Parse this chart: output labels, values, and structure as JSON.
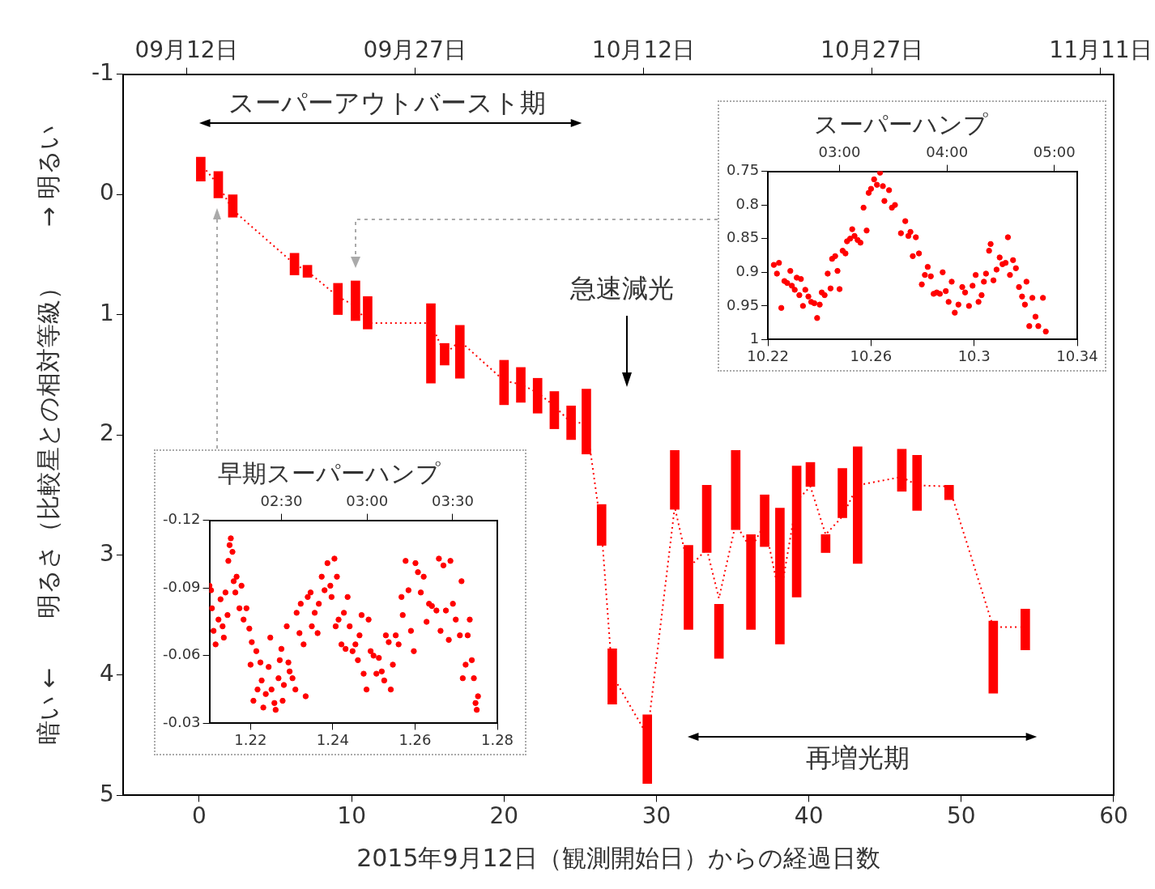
{
  "chart_data": [
    {
      "type": "bar",
      "xlabel": "2015年9月12日（観測開始日）からの経過日数",
      "ylabel": "暗い ←　　明るさ（比較星との相対等級）　　→ 明るい",
      "x": [
        0.1,
        1.25,
        2.2,
        6.25,
        7.1,
        9.1,
        10.25,
        11.05,
        15.2,
        16.1,
        17.1,
        20.0,
        21.1,
        22.2,
        23.3,
        24.4,
        25.4,
        26.4,
        27.1,
        29.4,
        31.2,
        32.1,
        33.3,
        34.1,
        35.2,
        36.2,
        37.1,
        38.1,
        39.2,
        40.1,
        41.1,
        42.2,
        43.2,
        46.1,
        47.1,
        49.2,
        52.1,
        54.2
      ],
      "series": [
        {
          "color": "#ff0000",
          "base": [
            -0.31,
            -0.19,
            0.0,
            0.49,
            0.59,
            0.74,
            0.72,
            0.85,
            0.91,
            1.24,
            1.09,
            1.38,
            1.44,
            1.53,
            1.64,
            1.76,
            1.62,
            2.58,
            3.78,
            4.33,
            2.13,
            2.92,
            2.42,
            3.41,
            2.13,
            2.83,
            2.5,
            2.61,
            2.26,
            2.23,
            2.83,
            2.28,
            2.1,
            2.12,
            2.17,
            2.42,
            3.55,
            3.45
          ],
          "values": [
            0.2,
            0.22,
            0.19,
            0.18,
            0.1,
            0.26,
            0.33,
            0.27,
            0.66,
            0.18,
            0.44,
            0.37,
            0.29,
            0.29,
            0.31,
            0.28,
            0.54,
            0.34,
            0.46,
            0.57,
            0.49,
            0.7,
            0.56,
            0.45,
            0.66,
            0.79,
            0.43,
            1.13,
            1.09,
            0.2,
            0.15,
            0.41,
            0.97,
            0.35,
            0.46,
            0.12,
            0.6,
            0.34
          ]
        },
        {
          "type": "line",
          "color": "#ff0000",
          "line_style": "dotted",
          "marker": "none",
          "x": [
            0.45,
            1.25,
            2.2,
            6.25,
            7.1,
            9.1,
            10.25,
            11.05,
            15.2,
            16.1,
            17.1,
            20.0,
            21.1,
            22.2,
            23.3,
            24.4,
            25.4,
            26.4,
            27.1,
            29.4,
            31.2,
            32.1,
            33.3,
            34.1,
            35.2,
            36.2,
            37.1,
            38.1,
            39.2,
            40.1,
            41.1,
            42.2,
            43.2,
            46.1,
            47.1,
            49.2,
            52.1,
            53.85
          ],
          "values": [
            -0.2,
            -0.08,
            0.13,
            0.58,
            0.64,
            0.85,
            0.93,
            1.07,
            1.07,
            1.33,
            1.22,
            1.55,
            1.58,
            1.65,
            1.76,
            1.9,
            1.9,
            2.8,
            4.0,
            4.5,
            2.6,
            3.11,
            2.95,
            3.36,
            2.74,
            2.95,
            2.74,
            3.36,
            2.55,
            2.43,
            2.83,
            2.68,
            2.42,
            2.35,
            2.42,
            2.43,
            3.6,
            3.6
          ]
        }
      ],
      "xlim": [
        -5,
        60
      ],
      "xticks": [
        0,
        10,
        20,
        30,
        40,
        50,
        60
      ],
      "ylim": [
        5,
        -1
      ],
      "yticks": [
        -1,
        0,
        1,
        2,
        3,
        4,
        5
      ],
      "x2lim": [
        "2015-09-07T20:24",
        "2015-11-11T20:24"
      ],
      "x2ticks": [
        {
          "value": "2015-09-12",
          "label": "09月12日"
        },
        {
          "value": "2015-09-27",
          "label": "09月27日"
        },
        {
          "value": "2015-10-12",
          "label": "10月12日"
        },
        {
          "value": "2015-10-27",
          "label": "10月27日"
        },
        {
          "value": "2015-11-11",
          "label": "11月11日"
        }
      ],
      "annotations": [
        "スーパーアウトバースト期",
        "急速減光",
        "再増光期"
      ],
      "grid": false,
      "legend": false
    },
    {
      "type": "scatter",
      "title": "早期スーパーハンプ",
      "marker": "circle",
      "series": [
        {
          "color": "#ff0000",
          "x": [
            1.21,
            1.2104,
            1.2106,
            1.211,
            1.2115,
            1.2122,
            1.2127,
            1.2132,
            1.2135,
            1.2139,
            1.2144,
            1.2146,
            1.2149,
            1.2152,
            1.2156,
            1.2159,
            1.2163,
            1.2166,
            1.2173,
            1.2178,
            1.2183,
            1.219,
            1.2197,
            1.22,
            1.2203,
            1.2207,
            1.2214,
            1.2217,
            1.2224,
            1.2227,
            1.2231,
            1.2237,
            1.2244,
            1.2248,
            1.2251,
            1.2258,
            1.2261,
            1.2268,
            1.2271,
            1.2275,
            1.2278,
            1.2281,
            1.2288,
            1.2292,
            1.2295,
            1.2302,
            1.2309,
            1.2312,
            1.2319,
            1.2322,
            1.2329,
            1.2334,
            1.2339,
            1.2346,
            1.2349,
            1.2356,
            1.2363,
            1.2366,
            1.2373,
            1.238,
            1.2387,
            1.2394,
            1.2397,
            1.2404,
            1.2407,
            1.241,
            1.2414,
            1.2421,
            1.2427,
            1.2431,
            1.2436,
            1.2441,
            1.2448,
            1.2455,
            1.2461,
            1.2465,
            1.247,
            1.2475,
            1.2482,
            1.2487,
            1.2492,
            1.2499,
            1.2506,
            1.2512,
            1.2519,
            1.2525,
            1.2529,
            1.2536,
            1.2541,
            1.2546,
            1.2553,
            1.256,
            1.2567,
            1.257,
            1.2577,
            1.2584,
            1.259,
            1.2597,
            1.2601,
            1.2607,
            1.2614,
            1.2621,
            1.2628,
            1.2634,
            1.2641,
            1.2652,
            1.2658,
            1.2662,
            1.2669,
            1.2675,
            1.2682,
            1.2686,
            1.2692,
            1.2699,
            1.2709,
            1.2713,
            1.2716,
            1.2723,
            1.2728,
            1.2733,
            1.2738,
            1.2743,
            1.2747,
            1.275,
            1.2753
          ],
          "values": [
            -0.091,
            -0.089,
            -0.081,
            -0.071,
            -0.065,
            -0.076,
            -0.085,
            -0.073,
            -0.068,
            -0.088,
            -0.078,
            -0.102,
            -0.109,
            -0.112,
            -0.106,
            -0.093,
            -0.088,
            -0.095,
            -0.081,
            -0.091,
            -0.076,
            -0.081,
            -0.072,
            -0.056,
            -0.066,
            -0.04,
            -0.062,
            -0.045,
            -0.057,
            -0.049,
            -0.037,
            -0.043,
            -0.055,
            -0.068,
            -0.045,
            -0.039,
            -0.036,
            -0.05,
            -0.058,
            -0.063,
            -0.04,
            -0.047,
            -0.073,
            -0.057,
            -0.053,
            -0.05,
            -0.045,
            -0.079,
            -0.07,
            -0.083,
            -0.065,
            -0.042,
            -0.086,
            -0.088,
            -0.073,
            -0.079,
            -0.07,
            -0.083,
            -0.095,
            -0.089,
            -0.101,
            -0.091,
            -0.086,
            -0.103,
            -0.073,
            -0.095,
            -0.076,
            -0.065,
            -0.079,
            -0.063,
            -0.086,
            -0.073,
            -0.062,
            -0.065,
            -0.058,
            -0.069,
            -0.078,
            -0.052,
            -0.045,
            -0.076,
            -0.062,
            -0.06,
            -0.052,
            -0.059,
            -0.053,
            -0.049,
            -0.069,
            -0.066,
            -0.045,
            -0.056,
            -0.069,
            -0.065,
            -0.086,
            -0.078,
            -0.102,
            -0.089,
            -0.071,
            -0.062,
            -0.101,
            -0.097,
            -0.088,
            -0.095,
            -0.075,
            -0.083,
            -0.082,
            -0.08,
            -0.103,
            -0.071,
            -0.1,
            -0.08,
            -0.067,
            -0.102,
            -0.083,
            -0.076,
            -0.069,
            -0.093,
            -0.05,
            -0.056,
            -0.069,
            -0.076,
            -0.058,
            -0.05,
            -0.039,
            -0.036,
            -0.042
          ]
        }
      ],
      "xlim": [
        1.21,
        1.28
      ],
      "xticks": [
        1.22,
        1.24,
        1.26,
        1.28
      ],
      "ylim": [
        -0.03,
        -0.12
      ],
      "yticks": [
        -0.12,
        -0.09,
        -0.06,
        -0.03
      ],
      "x2lim": [
        2.08,
        3.76
      ],
      "x2ticks": [
        {
          "value": 2.5,
          "label": "02:30"
        },
        {
          "value": 3,
          "label": "03:00"
        },
        {
          "value": 3.5,
          "label": "03:30"
        }
      ],
      "grid": false,
      "legend": false
    },
    {
      "type": "scatter",
      "title": "スーパーハンプ",
      "marker": "circle",
      "series": [
        {
          "color": "#ff0000",
          "x": [
            10.2223,
            10.2235,
            10.2243,
            10.2252,
            10.2264,
            10.2275,
            10.2287,
            10.2293,
            10.2304,
            10.2312,
            10.2322,
            10.2328,
            10.2336,
            10.2345,
            10.2357,
            10.2368,
            10.238,
            10.2391,
            10.2401,
            10.2409,
            10.242,
            10.2432,
            10.2443,
            10.2449,
            10.2461,
            10.247,
            10.2478,
            10.249,
            10.2501,
            10.2507,
            10.2519,
            10.2527,
            10.2536,
            10.2548,
            10.2559,
            10.2571,
            10.2583,
            10.2591,
            10.26,
            10.2612,
            10.2623,
            10.2635,
            10.2646,
            10.2652,
            10.267,
            10.2681,
            10.2693,
            10.2716,
            10.2733,
            10.2745,
            10.2753,
            10.2762,
            10.2774,
            10.2786,
            10.2797,
            10.2809,
            10.282,
            10.2832,
            10.2843,
            10.2855,
            10.2867,
            10.2878,
            10.289,
            10.2901,
            10.2913,
            10.2925,
            10.2939,
            10.2954,
            10.2965,
            10.298,
            10.2994,
            10.3006,
            10.3017,
            10.3029,
            10.3038,
            10.3046,
            10.3058,
            10.3064,
            10.3075,
            10.3087,
            10.3099,
            10.311,
            10.3122,
            10.3131,
            10.3139,
            10.3151,
            10.3162,
            10.3174,
            10.3186,
            10.3197,
            10.3203,
            10.3214,
            10.3226,
            10.3238,
            10.3249,
            10.3267,
            10.3278
          ],
          "values": [
            0.889,
            0.902,
            0.886,
            0.953,
            0.913,
            0.916,
            0.898,
            0.92,
            0.926,
            0.908,
            0.934,
            0.91,
            0.95,
            0.926,
            0.936,
            0.944,
            0.946,
            0.968,
            0.948,
            0.93,
            0.934,
            0.902,
            0.924,
            0.88,
            0.876,
            0.898,
            0.925,
            0.868,
            0.872,
            0.854,
            0.85,
            0.836,
            0.846,
            0.852,
            0.856,
            0.804,
            0.838,
            0.782,
            0.776,
            0.762,
            0.77,
            0.752,
            0.772,
            0.794,
            0.778,
            0.804,
            0.8,
            0.842,
            0.824,
            0.846,
            0.84,
            0.876,
            0.848,
            0.872,
            0.918,
            0.904,
            0.892,
            0.906,
            0.932,
            0.93,
            0.932,
            0.9,
            0.928,
            0.944,
            0.914,
            0.96,
            0.948,
            0.922,
            0.93,
            0.95,
            0.92,
            0.904,
            0.944,
            0.934,
            0.914,
            0.902,
            0.868,
            0.858,
            0.912,
            0.896,
            0.878,
            0.888,
            0.886,
            0.848,
            0.904,
            0.882,
            0.894,
            0.922,
            0.936,
            0.948,
            0.914,
            0.98,
            0.938,
            0.966,
            0.98,
            0.938,
            0.988
          ]
        }
      ],
      "xlim": [
        10.22,
        10.34
      ],
      "xticks": [
        10.22,
        10.26,
        10.3,
        10.34
      ],
      "ylim": [
        1,
        0.75
      ],
      "yticks": [
        0.75,
        0.8,
        0.85,
        0.9,
        0.95,
        1
      ],
      "x2lim": [
        2.333,
        5.213
      ],
      "x2ticks": [
        {
          "value": 3,
          "label": "03:00"
        },
        {
          "value": 4,
          "label": "04:00"
        },
        {
          "value": 5,
          "label": "05:00"
        }
      ],
      "grid": false,
      "legend": false
    }
  ]
}
